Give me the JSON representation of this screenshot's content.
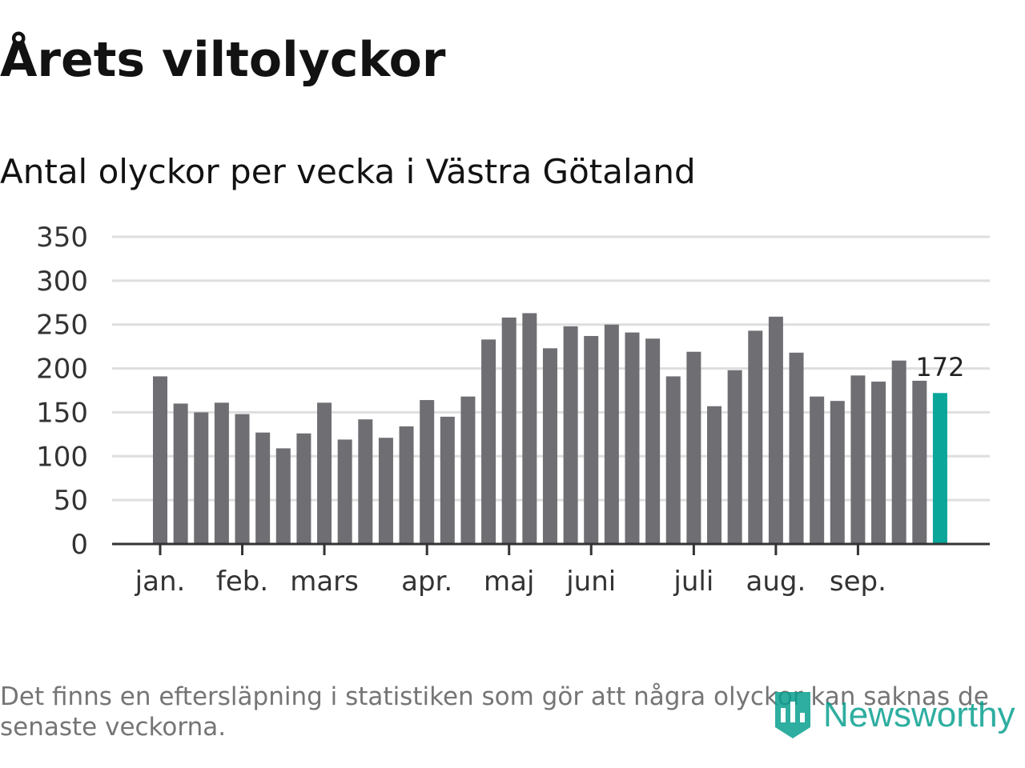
{
  "title": "Årets viltolyckor",
  "subtitle": "Antal olyckor per vecka i Västra Götaland",
  "footnote": "Det finns en eftersläpning i statistiken som gör att några olyckor kan saknas de senaste veckorna.",
  "brand": "Newsworthy",
  "colors": {
    "bar": "#6e6e73",
    "highlight": "#0aa69a",
    "grid": "#dedede",
    "axis": "#333333",
    "tick_text": "#333333",
    "brand": "#0aa090"
  },
  "chart_data": {
    "type": "bar",
    "title": "Antal olyckor per vecka i Västra Götaland",
    "xlabel": "",
    "ylabel": "",
    "ylim": [
      0,
      350
    ],
    "yticks": [
      0,
      50,
      100,
      150,
      200,
      250,
      300,
      350
    ],
    "grid": true,
    "values": [
      191,
      160,
      150,
      161,
      148,
      127,
      109,
      126,
      161,
      119,
      142,
      121,
      134,
      164,
      145,
      168,
      233,
      258,
      263,
      223,
      248,
      237,
      250,
      241,
      234,
      191,
      219,
      157,
      198,
      243,
      259,
      218,
      168,
      163,
      192,
      185,
      209,
      186,
      172
    ],
    "highlight_index": 38,
    "highlight_label": "172",
    "month_labels": [
      {
        "label": "jan.",
        "bar_index": 0
      },
      {
        "label": "feb.",
        "bar_index": 4
      },
      {
        "label": "mars",
        "bar_index": 8
      },
      {
        "label": "apr.",
        "bar_index": 13
      },
      {
        "label": "maj",
        "bar_index": 17
      },
      {
        "label": "juni",
        "bar_index": 21
      },
      {
        "label": "juli",
        "bar_index": 26
      },
      {
        "label": "aug.",
        "bar_index": 30
      },
      {
        "label": "sep.",
        "bar_index": 34
      }
    ]
  }
}
